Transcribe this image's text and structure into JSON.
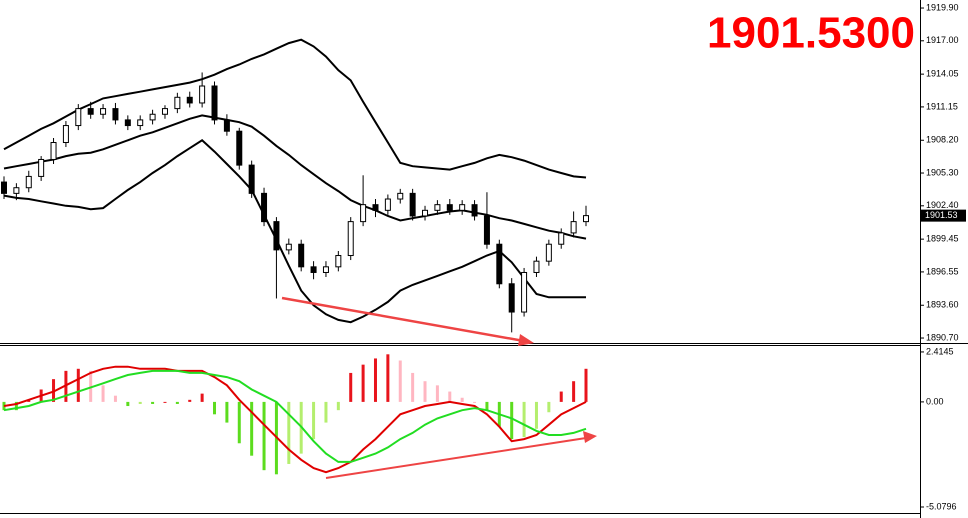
{
  "chart_data": [
    {
      "type": "candlestick",
      "title": "1901.5300",
      "last_price_label": "1901.53",
      "ylim": [
        1890.26,
        1920.61
      ],
      "yticks": [
        {
          "value": 1919.9,
          "label": "1919.90"
        },
        {
          "value": 1917,
          "label": "1917.00"
        },
        1914.05,
        1911.15,
        {
          "value": 1908.2,
          "label": "1908.20"
        },
        {
          "value": 1905.3,
          "label": "1905.30"
        },
        {
          "value": 1902.4,
          "label": "1902.40"
        },
        1899.45,
        1896.55,
        {
          "value": 1893.6,
          "label": "1893.60"
        },
        {
          "value": 1890.7,
          "label": "1890.70"
        }
      ],
      "up_color": "#ffffff",
      "down_color": "#000000",
      "title_color": "#ff0000",
      "open": [
        1904.5,
        1903.5,
        1904,
        1905,
        1906.5,
        1908,
        1909.5,
        1911,
        1910.5,
        1911,
        1910,
        1909.5,
        1910,
        1910.5,
        1911,
        1912,
        1911.5,
        1913,
        1910,
        1909,
        1906,
        1903.5,
        1901,
        1898.5,
        1899,
        1897,
        1896.5,
        1897,
        1898,
        1901,
        1902.5,
        1902,
        1903,
        1903.5,
        1901.5,
        1902,
        1902.5,
        1902,
        1902.5,
        1901.5,
        1899,
        1895.5,
        1893,
        1896.5,
        1897.5,
        1899,
        1900,
        1901
      ],
      "high": [
        1905,
        1904.4,
        1905.5,
        1906.8,
        1908.4,
        1909.9,
        1911.4,
        1911.6,
        1911.4,
        1911.5,
        1910.4,
        1910.4,
        1910.9,
        1911.3,
        1912.4,
        1912.5,
        1914.2,
        1913.4,
        1910.5,
        1909.3,
        1906.4,
        1904,
        1901.4,
        1899.5,
        1899.4,
        1897.5,
        1897.5,
        1898.4,
        1901.4,
        1905.1,
        1903,
        1903.4,
        1903.9,
        1903.9,
        1902.4,
        1902.9,
        1903,
        1902.9,
        1902.9,
        1903.6,
        1899.4,
        1896,
        1896.9,
        1897.9,
        1899.4,
        1900.4,
        1901.9,
        1902.4
      ],
      "low": [
        1903,
        1902.9,
        1903.6,
        1904.6,
        1906.1,
        1907.6,
        1909.1,
        1910.1,
        1910.1,
        1909.6,
        1909.1,
        1909.1,
        1909.6,
        1910.1,
        1910.6,
        1911.1,
        1911.1,
        1909.6,
        1908.6,
        1905.6,
        1903.1,
        1900.6,
        1894.2,
        1898.1,
        1896.6,
        1895.9,
        1896.1,
        1896.6,
        1897.6,
        1900.6,
        1901.4,
        1901.6,
        1902.6,
        1901.1,
        1901.1,
        1901.6,
        1901.6,
        1901.6,
        1901.1,
        1898.6,
        1895.1,
        1891.2,
        1892.6,
        1896.1,
        1897.1,
        1898.6,
        1899.6,
        1900.6
      ],
      "close": [
        1903.5,
        1904,
        1905,
        1906.5,
        1908,
        1909.5,
        1911,
        1910.5,
        1911,
        1910,
        1909.5,
        1910,
        1910.5,
        1911,
        1912,
        1911.5,
        1913,
        1910,
        1909,
        1906,
        1903.5,
        1901,
        1898.5,
        1899,
        1897,
        1896.5,
        1897,
        1898,
        1901,
        1902.5,
        1902,
        1903,
        1903.5,
        1901.5,
        1902,
        1902.5,
        1902,
        1902.5,
        1901.5,
        1899,
        1895.5,
        1893,
        1896.5,
        1897.5,
        1899,
        1900,
        1901,
        1901.53
      ],
      "series": [
        {
          "color": "#000000",
          "values": [
            1907.4,
            1908,
            1908.6,
            1909.2,
            1909.7,
            1910.3,
            1910.9,
            1911.4,
            1911.9,
            1912.1,
            1912.3,
            1912.5,
            1912.7,
            1912.9,
            1913.1,
            1913.3,
            1913.6,
            1914,
            1914.5,
            1914.9,
            1915.4,
            1915.8,
            1916.3,
            1916.8,
            1917.1,
            1916.5,
            1915.6,
            1914.4,
            1913.5,
            1911.6,
            1909.8,
            1908,
            1906.2,
            1905.9,
            1905.8,
            1905.7,
            1905.6,
            1905.9,
            1906.2,
            1906.6,
            1906.9,
            1906.7,
            1906.4,
            1906,
            1905.6,
            1905.3,
            1905,
            1904.9
          ]
        },
        {
          "color": "#000000",
          "values": [
            1905.7,
            1905.9,
            1906.1,
            1906.3,
            1906.5,
            1906.8,
            1907,
            1907.1,
            1907.4,
            1907.8,
            1908.2,
            1908.6,
            1908.9,
            1909.3,
            1909.7,
            1910.1,
            1910.4,
            1910.2,
            1910,
            1909.8,
            1909.4,
            1908.6,
            1907.7,
            1906.9,
            1906,
            1905.2,
            1904.4,
            1903.7,
            1902.9,
            1902.4,
            1902,
            1901.5,
            1901.1,
            1901.3,
            1901.5,
            1901.7,
            1901.9,
            1902,
            1901.8,
            1901.6,
            1901.3,
            1901.1,
            1900.8,
            1900.5,
            1900.2,
            1900,
            1899.7,
            1899.5
          ]
        },
        {
          "color": "#000000",
          "values": [
            1903.3,
            1903.1,
            1903,
            1902.8,
            1902.6,
            1902.4,
            1902.3,
            1902.1,
            1902.2,
            1903,
            1903.8,
            1904.5,
            1905.3,
            1906,
            1906.8,
            1907.5,
            1908.2,
            1907.2,
            1906.1,
            1905,
            1903.8,
            1901.6,
            1899.4,
            1897.1,
            1894.9,
            1893.6,
            1892.8,
            1892.3,
            1892.1,
            1892.6,
            1893.2,
            1893.9,
            1894.9,
            1895.4,
            1895.8,
            1896.2,
            1896.6,
            1897,
            1897.5,
            1898,
            1898.4,
            1897.4,
            1896,
            1894.6,
            1894.3,
            1894.3,
            1894.3,
            1894.3
          ]
        }
      ]
    },
    {
      "type": "macd",
      "ylim": [
        -5.37,
        2.75
      ],
      "yticks": [
        2.4145,
        {
          "value": 0,
          "label": "0.00"
        },
        -5.0796
      ],
      "histogram_colors": {
        "up_rising": "#e8141c",
        "up_falling": "#ffb6c1",
        "down_falling": "#5cdc1e",
        "down_rising": "#b4ee6e"
      },
      "histogram": [
        -0.4,
        -0.4,
        0.1,
        0.6,
        1.1,
        1.5,
        1.6,
        1.5,
        0.8,
        0.3,
        -0.2,
        -0.1,
        -0.1,
        0,
        -0.1,
        0.1,
        0.4,
        -0.6,
        -1.0,
        -2.0,
        -2.6,
        -3.3,
        -3.5,
        -3.0,
        -2.5,
        -1.8,
        -1.0,
        -0.4,
        1.4,
        1.8,
        2.1,
        2.3,
        2.0,
        1.4,
        1.0,
        0.8,
        0.5,
        0.2,
        0,
        -0.4,
        -1.2,
        -1.8,
        -1.7,
        -1.3,
        -0.5,
        0.5,
        1.0,
        1.6
      ],
      "series": [
        {
          "color": "#e00000",
          "values": [
            -0.2,
            -0.1,
            0.1,
            0.3,
            0.5,
            0.8,
            1.1,
            1.4,
            1.6,
            1.7,
            1.7,
            1.6,
            1.6,
            1.6,
            1.5,
            1.5,
            1.5,
            1.2,
            0.8,
            0.1,
            -0.5,
            -1.1,
            -1.7,
            -2.3,
            -2.8,
            -3.2,
            -3.4,
            -3.2,
            -2.9,
            -2.3,
            -1.8,
            -1.2,
            -0.6,
            -0.4,
            -0.2,
            -0.1,
            0,
            -0.1,
            -0.2,
            -0.6,
            -1.2,
            -1.9,
            -1.8,
            -1.6,
            -1.1,
            -0.6,
            -0.3,
            0
          ]
        },
        {
          "color": "#22dd22",
          "values": [
            -0.4,
            -0.3,
            -0.2,
            0,
            0.1,
            0.3,
            0.5,
            0.7,
            0.9,
            1.1,
            1.3,
            1.4,
            1.5,
            1.5,
            1.5,
            1.4,
            1.4,
            1.3,
            1.2,
            1.0,
            0.6,
            0.3,
            0,
            -0.6,
            -1.2,
            -1.9,
            -2.5,
            -2.9,
            -2.9,
            -2.7,
            -2.5,
            -2.2,
            -1.8,
            -1.5,
            -1.1,
            -0.8,
            -0.6,
            -0.4,
            -0.3,
            -0.4,
            -0.6,
            -0.8,
            -1.1,
            -1.4,
            -1.6,
            -1.6,
            -1.5,
            -1.3
          ]
        }
      ]
    }
  ]
}
